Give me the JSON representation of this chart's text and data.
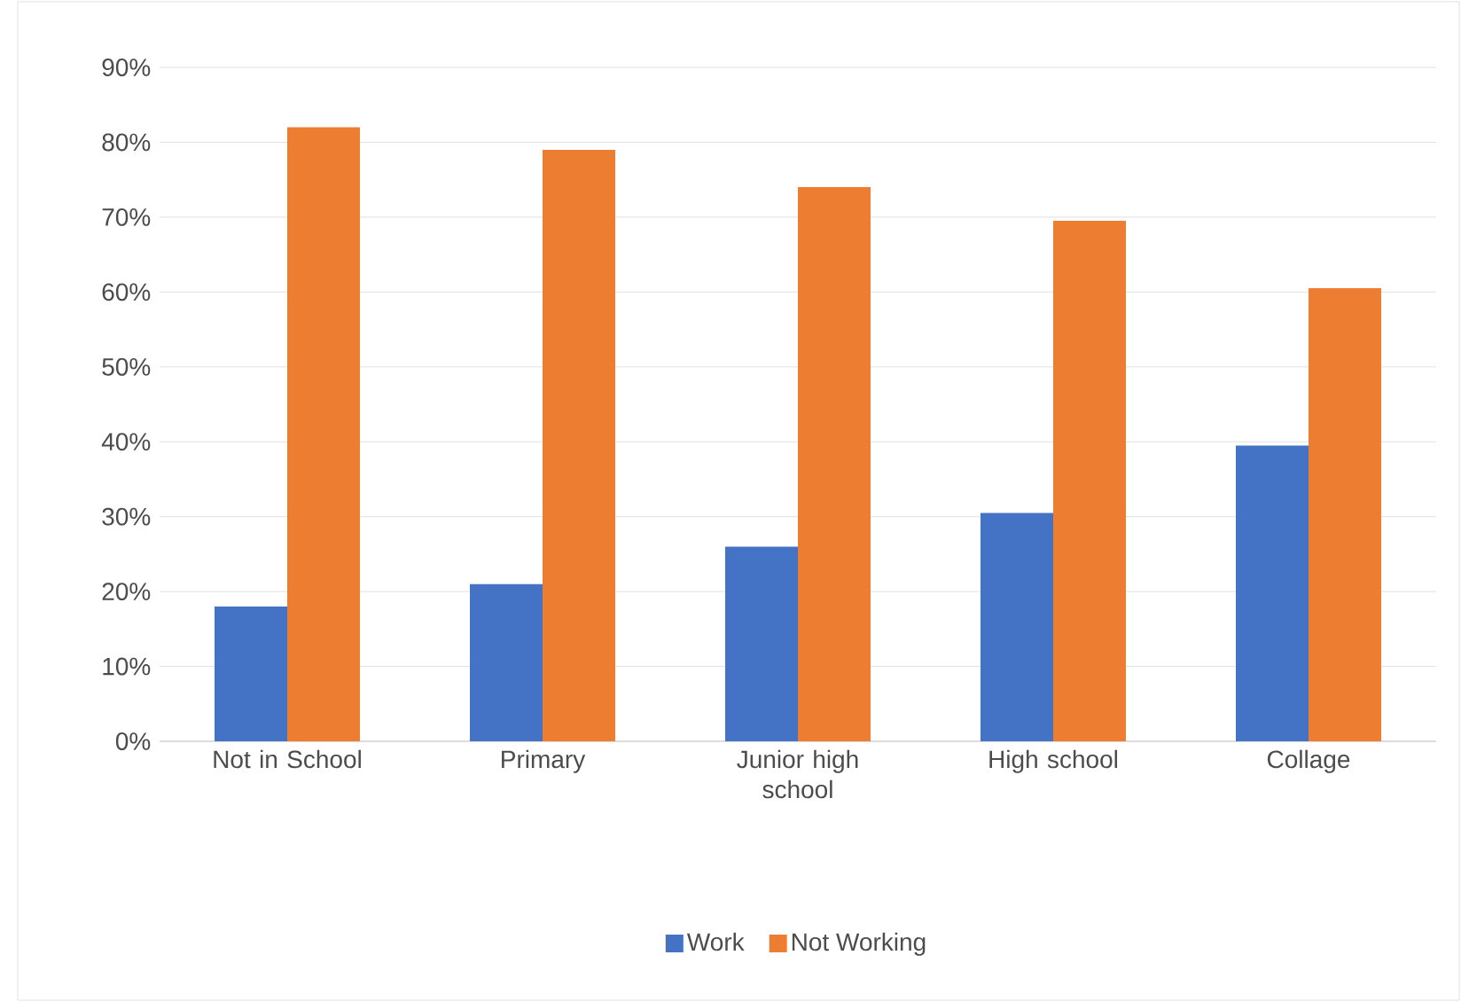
{
  "chart_data": {
    "type": "bar",
    "categories": [
      "Not in School",
      "Primary",
      "Junior high school",
      "High school",
      "Collage"
    ],
    "series": [
      {
        "name": "Work",
        "color": "#4472c4",
        "values": [
          18,
          21,
          26,
          30.5,
          39.5
        ]
      },
      {
        "name": "Not Working",
        "color": "#ed7d31",
        "values": [
          82,
          79,
          74,
          69.5,
          60.5
        ]
      }
    ],
    "ylim": [
      0,
      90
    ],
    "yticks": [
      {
        "value": 0,
        "label": "0%"
      },
      {
        "value": 10,
        "label": "10%"
      },
      {
        "value": 20,
        "label": "20%"
      },
      {
        "value": 30,
        "label": "30%"
      },
      {
        "value": 40,
        "label": "40%"
      },
      {
        "value": 50,
        "label": "50%"
      },
      {
        "value": 60,
        "label": "60%"
      },
      {
        "value": 70,
        "label": "70%"
      },
      {
        "value": 80,
        "label": "80%"
      },
      {
        "value": 90,
        "label": "90%"
      }
    ],
    "grid": "y",
    "legend": "bottom"
  }
}
